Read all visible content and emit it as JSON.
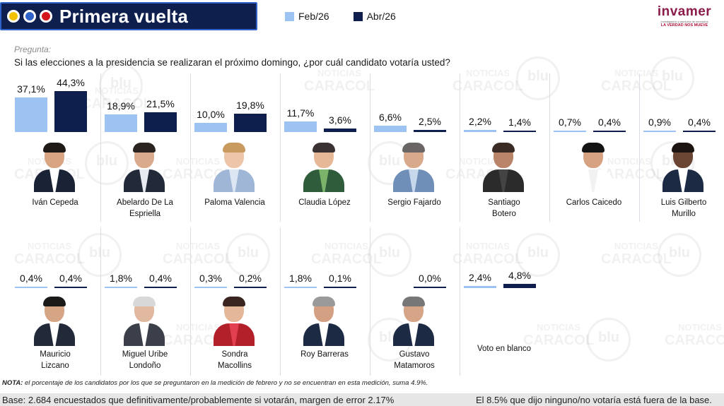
{
  "header": {
    "title": "Primera vuelta",
    "brand_name": "invamer",
    "brand_sub": "Investigación y asesoría de mercados",
    "brand_tag": "LA VERDAD NOS MUEVE"
  },
  "watermark": {
    "top": "NOTICIAS",
    "bottom": "CARACOL",
    "radio": "blu"
  },
  "question": {
    "label": "Pregunta:",
    "text": "Si las elecciones a la presidencia se realizaran el próximo domingo, ¿por cuál candidato votaría usted?"
  },
  "colors": {
    "feb": "#9cc3f2",
    "abr": "#0f1f4d",
    "title_bg": "#0f1f4d"
  },
  "chart_data": {
    "type": "bar",
    "title": "Primera vuelta",
    "series": [
      {
        "name": "Feb/26",
        "values": [
          37.1,
          18.9,
          10.0,
          11.7,
          6.6,
          2.2,
          0.7,
          0.9,
          0.4,
          1.8,
          0.3,
          1.8,
          null,
          2.4
        ]
      },
      {
        "name": "Abr/26",
        "values": [
          44.3,
          21.5,
          19.8,
          3.6,
          2.5,
          1.4,
          0.4,
          0.4,
          0.4,
          0.4,
          0.2,
          0.1,
          0.0,
          4.8
        ]
      }
    ],
    "categories": [
      "Iván Cepeda",
      "Abelardo De La Espriella",
      "Paloma Valencia",
      "Claudia López",
      "Sergio Fajardo",
      "Santiago Botero",
      "Carlos Caicedo",
      "Luis Gilberto Murillo",
      "Mauricio Lizcano",
      "Miguel Uribe Londoño",
      "Sondra Macollins",
      "Roy Barreras",
      "Gustavo Matamoros",
      "Voto en blanco"
    ],
    "feb_labels": [
      "37,1%",
      "18,9%",
      "10,0%",
      "11,7%",
      "6,6%",
      "2,2%",
      "0,7%",
      "0,9%",
      "0,4%",
      "1,8%",
      "0,3%",
      "1,8%",
      "",
      "2,4%"
    ],
    "abr_labels": [
      "44,3%",
      "21,5%",
      "19,8%",
      "3,6%",
      "2,5%",
      "1,4%",
      "0,4%",
      "0,4%",
      "0,4%",
      "0,4%",
      "0,2%",
      "0,1%",
      "0,0%",
      "4,8%"
    ],
    "name_lines": [
      [
        "Iván Cepeda"
      ],
      [
        "Abelardo De La",
        "Espriella"
      ],
      [
        "Paloma Valencia"
      ],
      [
        "Claudia López"
      ],
      [
        "Sergio Fajardo"
      ],
      [
        "Santiago",
        "Botero"
      ],
      [
        "Carlos Caicedo"
      ],
      [
        "Luis Gilberto",
        "Murillo"
      ],
      [
        "Mauricio",
        "Lizcano"
      ],
      [
        "Miguel Uribe",
        "Londoño"
      ],
      [
        "Sondra",
        "Macollins"
      ],
      [
        "Roy Barreras"
      ],
      [
        "Gustavo",
        "Matamoros"
      ],
      [
        "Voto en blanco"
      ]
    ],
    "photo": [
      {
        "skin": "#d8a482",
        "hair": "#1e1a18",
        "suit": "#1a2235",
        "shirt": "#ffffff"
      },
      {
        "skin": "#d9aa8c",
        "hair": "#2b2320",
        "suit": "#222a3a",
        "shirt": "#e8ecf2"
      },
      {
        "skin": "#edc6a9",
        "hair": "#c89a5e",
        "suit": "#9fb6d6",
        "shirt": "#dce6f3"
      },
      {
        "skin": "#e6b897",
        "hair": "#3a3232",
        "suit": "#2f5c3a",
        "shirt": "#7bb36a"
      },
      {
        "skin": "#d9a98b",
        "hair": "#6b6666",
        "suit": "#6f8fb8",
        "shirt": "#c8d8ec"
      },
      {
        "skin": "#b98467",
        "hair": "#3a2b25",
        "suit": "#2b2b2b",
        "shirt": "#444444"
      },
      {
        "skin": "#d7a282",
        "hair": "#141414",
        "suit": "#ffffff",
        "shirt": "#f2f2f2"
      },
      {
        "skin": "#6a4533",
        "hair": "#1b1410",
        "suit": "#1d2a44",
        "shirt": "#ffffff"
      },
      {
        "skin": "#d6a586",
        "hair": "#1c1a19",
        "suit": "#222a3a",
        "shirt": "#ffffff"
      },
      {
        "skin": "#e1b8a0",
        "hair": "#d8d8d8",
        "suit": "#3b3f4a",
        "shirt": "#ffffff"
      },
      {
        "skin": "#e4b799",
        "hair": "#3a2420",
        "suit": "#b2202a",
        "shirt": "#e24050"
      },
      {
        "skin": "#d4a084",
        "hair": "#9a9a9a",
        "suit": "#1d2a44",
        "shirt": "#ffffff"
      },
      {
        "skin": "#d6a486",
        "hair": "#777777",
        "suit": "#1d2a44",
        "shirt": "#ffffff"
      },
      null
    ],
    "ylim": [
      0,
      44.3
    ]
  },
  "footer": {
    "note_label": "NOTA:",
    "note_text": " el porcentaje de los candidatos por los que se preguntaron en la medición de febrero y no se encuentran en esta medición, suma 4.9%.",
    "base_left": "Base: 2.684 encuestados que definitivamente/probablemente si votarán, margen de error 2.17%",
    "base_right": "El 8.5% que dijo ninguno/no votaría está fuera de la base."
  }
}
